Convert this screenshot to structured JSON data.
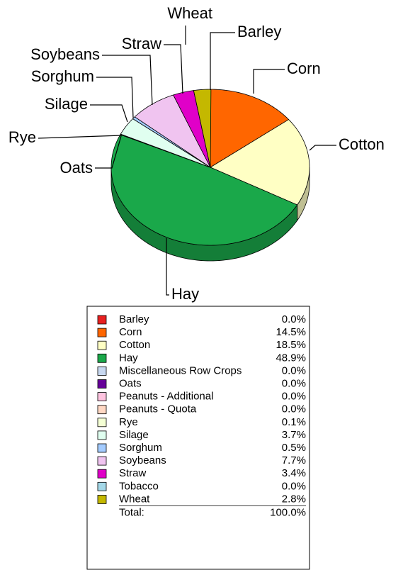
{
  "chart_data": {
    "type": "pie",
    "categories": [
      "Barley",
      "Corn",
      "Cotton",
      "Hay",
      "Miscellaneous Row Crops",
      "Oats",
      "Peanuts - Additional",
      "Peanuts - Quota",
      "Rye",
      "Silage",
      "Sorghum",
      "Soybeans",
      "Straw",
      "Tobacco",
      "Wheat"
    ],
    "values": [
      0.0,
      14.5,
      18.5,
      48.9,
      0.0,
      0.0,
      0.0,
      0.0,
      0.1,
      3.7,
      0.5,
      7.7,
      3.4,
      0.0,
      2.8
    ],
    "value_labels": [
      "0.0%",
      "14.5%",
      "18.5%",
      "48.9%",
      "0.0%",
      "0.0%",
      "0.0%",
      "0.0%",
      "0.1%",
      "3.7%",
      "0.5%",
      "7.7%",
      "3.4%",
      "0.0%",
      "2.8%"
    ],
    "colors": [
      "#e82020",
      "#ff6600",
      "#ffffc4",
      "#1aa84a",
      "#c8d8f0",
      "#660099",
      "#ffc4e0",
      "#ffd8c4",
      "#f4ffd4",
      "#e0fff0",
      "#a4ccff",
      "#f0c4f0",
      "#e000c8",
      "#a4d8e8",
      "#c4b800"
    ],
    "total_label": "Total:",
    "total": 100,
    "total_value_label": "100.0%"
  }
}
